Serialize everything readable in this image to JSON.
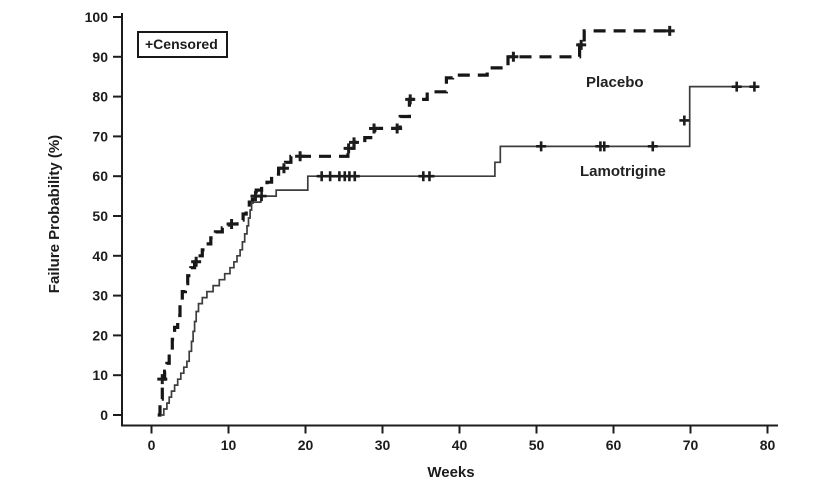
{
  "figure": {
    "background_color": "#ffffff",
    "ink_color": "#1c1c1c"
  },
  "chart_data": {
    "type": "line",
    "subtype": "kaplan_meier_step",
    "title": "",
    "xlabel": "Weeks",
    "ylabel": "Failure Probability (%)",
    "xlim": [
      0,
      80
    ],
    "ylim": [
      0,
      100
    ],
    "xticks": [
      0,
      10,
      20,
      30,
      40,
      50,
      60,
      70,
      80
    ],
    "yticks": [
      0,
      10,
      20,
      30,
      40,
      50,
      60,
      70,
      80,
      90,
      100
    ],
    "grid": false,
    "legend": {
      "text": "+Censored",
      "position": "top-left"
    },
    "censor_marker": "plus",
    "series": [
      {
        "name": "Placebo",
        "line_style": "dashed",
        "color": "#161616",
        "line_width": 3.2,
        "steps": [
          [
            0.8,
            0
          ],
          [
            1.1,
            4
          ],
          [
            1.4,
            9
          ],
          [
            1.7,
            11
          ],
          [
            2.0,
            13
          ],
          [
            2.3,
            16
          ],
          [
            2.7,
            19
          ],
          [
            3.0,
            22
          ],
          [
            3.4,
            25
          ],
          [
            3.7,
            28
          ],
          [
            4.0,
            31
          ],
          [
            4.4,
            33
          ],
          [
            4.7,
            35
          ],
          [
            5.1,
            37
          ],
          [
            5.6,
            38.5
          ],
          [
            6.1,
            40
          ],
          [
            6.6,
            41.5
          ],
          [
            7.1,
            43
          ],
          [
            7.7,
            44.5
          ],
          [
            8.3,
            46
          ],
          [
            9.2,
            47
          ],
          [
            10.1,
            48
          ],
          [
            11.1,
            49
          ],
          [
            11.9,
            50.5
          ],
          [
            12.3,
            52
          ],
          [
            12.7,
            53.5
          ],
          [
            13.1,
            55
          ],
          [
            13.6,
            56.5
          ],
          [
            14.3,
            57.5
          ],
          [
            15.0,
            58.5
          ],
          [
            15.6,
            60.5
          ],
          [
            16.5,
            62
          ],
          [
            17.4,
            63.5
          ],
          [
            18.1,
            65
          ],
          [
            25.5,
            67
          ],
          [
            26.3,
            68.5
          ],
          [
            27.7,
            69.7
          ],
          [
            29.0,
            72
          ],
          [
            32.3,
            75
          ],
          [
            33.5,
            79.3
          ],
          [
            35.8,
            81.2
          ],
          [
            38.3,
            84.7
          ],
          [
            39.1,
            85.4
          ],
          [
            43.6,
            87.2
          ],
          [
            46.3,
            90
          ],
          [
            55.6,
            93
          ],
          [
            56.2,
            96.5
          ],
          [
            67.4,
            96.5
          ]
        ],
        "censored": [
          [
            1.4,
            9
          ],
          [
            5.8,
            38.5
          ],
          [
            10.4,
            48
          ],
          [
            13.5,
            55
          ],
          [
            17.2,
            62
          ],
          [
            19.3,
            65
          ],
          [
            25.6,
            67
          ],
          [
            26.3,
            68.5
          ],
          [
            28.9,
            72
          ],
          [
            31.9,
            72
          ],
          [
            33.6,
            79.3
          ],
          [
            47.0,
            90
          ],
          [
            55.8,
            93
          ],
          [
            67.3,
            96.5
          ]
        ]
      },
      {
        "name": "Lamotrigine",
        "line_style": "solid",
        "color": "#3d3d3d",
        "line_width": 1.7,
        "steps": [
          [
            1.2,
            0
          ],
          [
            1.6,
            1.5
          ],
          [
            2.0,
            3
          ],
          [
            2.3,
            4.5
          ],
          [
            2.6,
            6
          ],
          [
            3.0,
            7.5
          ],
          [
            3.4,
            9
          ],
          [
            3.8,
            10.5
          ],
          [
            4.2,
            12
          ],
          [
            4.6,
            13.5
          ],
          [
            4.9,
            16
          ],
          [
            5.2,
            18.5
          ],
          [
            5.4,
            21
          ],
          [
            5.6,
            23.5
          ],
          [
            5.8,
            26
          ],
          [
            6.1,
            28
          ],
          [
            6.6,
            29.5
          ],
          [
            7.2,
            31
          ],
          [
            8.0,
            32.5
          ],
          [
            8.8,
            34
          ],
          [
            9.5,
            35.5
          ],
          [
            10.2,
            37
          ],
          [
            10.7,
            38.5
          ],
          [
            11.1,
            40
          ],
          [
            11.5,
            41.5
          ],
          [
            11.8,
            43.5
          ],
          [
            12.1,
            45.5
          ],
          [
            12.4,
            47.5
          ],
          [
            12.6,
            49.5
          ],
          [
            12.8,
            51.5
          ],
          [
            13.0,
            53.5
          ],
          [
            14.2,
            55
          ],
          [
            16.2,
            56.5
          ],
          [
            20.3,
            60
          ],
          [
            44.6,
            63.5
          ],
          [
            45.3,
            67.5
          ],
          [
            69.9,
            82.5
          ],
          [
            78.4,
            82.5
          ]
        ],
        "censored": [
          [
            14.3,
            55
          ],
          [
            22.1,
            60
          ],
          [
            23.2,
            60
          ],
          [
            24.4,
            60
          ],
          [
            25.1,
            60
          ],
          [
            25.7,
            60
          ],
          [
            26.4,
            60
          ],
          [
            35.3,
            60
          ],
          [
            36.1,
            60
          ],
          [
            50.6,
            67.5
          ],
          [
            58.3,
            67.5
          ],
          [
            58.8,
            67.5
          ],
          [
            65.1,
            67.5
          ],
          [
            69.2,
            74
          ],
          [
            76.0,
            82.5
          ],
          [
            78.3,
            82.5
          ]
        ]
      }
    ]
  }
}
